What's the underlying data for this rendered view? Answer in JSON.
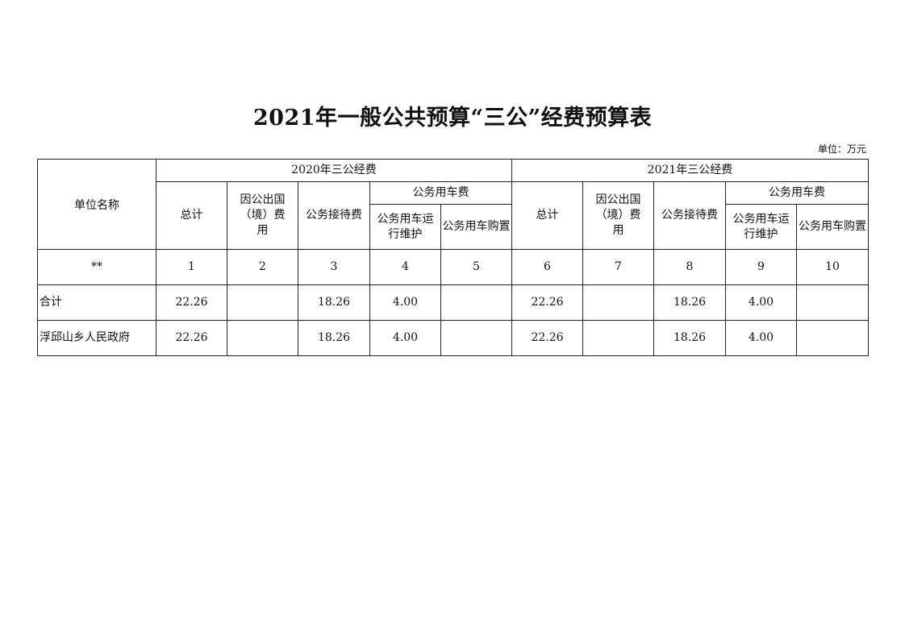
{
  "title": "2021年一般公共预算“三公”经费预算表",
  "unit": "单位：万元",
  "table": {
    "unit_name_header": "单位名称",
    "groups": [
      "2020年三公经费",
      "2021年三公经费"
    ],
    "subheaders": {
      "total": "总计",
      "abroad": "因公出国（境）费用",
      "reception": "公务接待费",
      "vehicle": "公务用车费",
      "vehicle_maint": "公务用车运行维护",
      "vehicle_purchase": "公务用车购置"
    },
    "index_row": [
      "**",
      "1",
      "2",
      "3",
      "4",
      "5",
      "6",
      "7",
      "8",
      "9",
      "10"
    ],
    "rows": [
      [
        "合计",
        "22.26",
        "",
        "18.26",
        "4.00",
        "",
        "22.26",
        "",
        "18.26",
        "4.00",
        ""
      ],
      [
        "浮邱山乡人民政府",
        "22.26",
        "",
        "18.26",
        "4.00",
        "",
        "22.26",
        "",
        "18.26",
        "4.00",
        ""
      ]
    ]
  }
}
